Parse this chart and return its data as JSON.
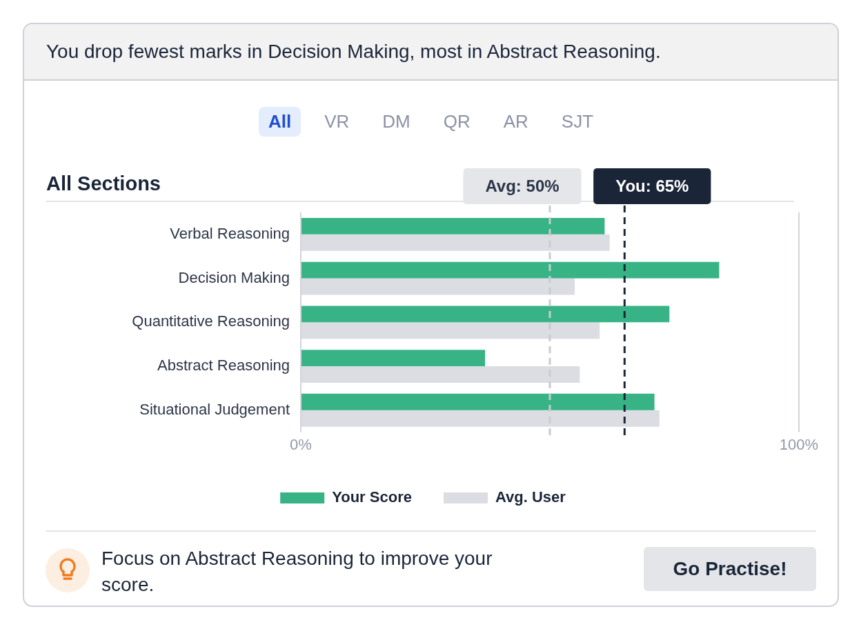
{
  "chart_data": {
    "type": "bar",
    "orientation": "horizontal",
    "title": "You drop fewest marks in Decision Making, most in Abstract Reasoning.",
    "subtitle": "All Sections",
    "categories": [
      "Verbal Reasoning",
      "Decision Making",
      "Quantitative Reasoning",
      "Abstract Reasoning",
      "Situational Judgement"
    ],
    "series": [
      {
        "name": "Your Score",
        "color": "#38b386",
        "values": [
          61,
          84,
          74,
          37,
          71
        ]
      },
      {
        "name": "Avg. User",
        "color": "#dcdde2",
        "values": [
          62,
          55,
          60,
          56,
          72
        ]
      }
    ],
    "xlim": [
      0,
      100
    ],
    "xticks": [
      {
        "value": 0,
        "label": "0%"
      },
      {
        "value": 100,
        "label": "100%"
      }
    ],
    "legend": "bottom",
    "ref_lines": [
      {
        "axis": "x",
        "value": 50,
        "label": "Avg: 50%",
        "color": "#c9cbd1",
        "line_style": "dashed"
      },
      {
        "axis": "x",
        "value": 65,
        "label": "You: 65%",
        "color": "#1a2538",
        "line_style": "dashed"
      }
    ],
    "annotations": [
      "All",
      "VR",
      "DM",
      "QR",
      "AR",
      "SJT",
      "Focus on Abstract Reasoning to improve your score.",
      "Go Practise!"
    ]
  }
}
